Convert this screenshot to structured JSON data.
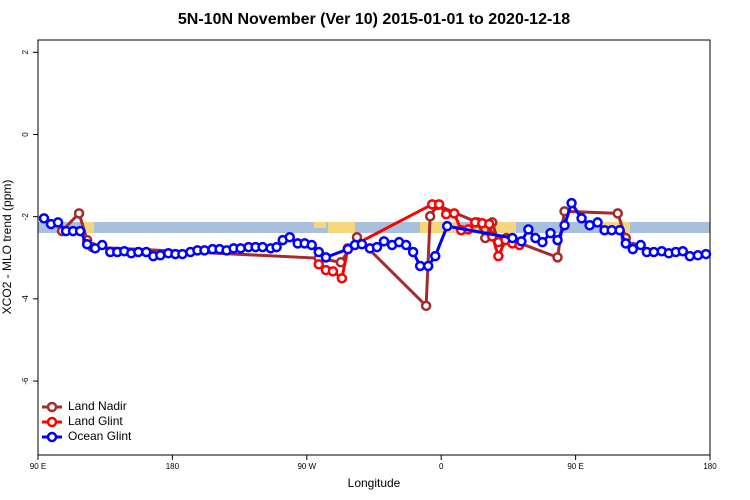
{
  "chart_data": {
    "type": "line",
    "title": "5N-10N November (Ver 10)   2015-01-01 to 2020-12-18",
    "xlabel": "Longitude",
    "ylabel": "XCO2 - MLO trend (ppm)",
    "xlim": [
      90,
      540
    ],
    "xticks": [
      {
        "value": 90,
        "label": "90 E"
      },
      180,
      {
        "value": 270,
        "label": "90 W"
      },
      {
        "value": 360,
        "label": "0"
      },
      {
        "value": 450,
        "label": "90 E"
      },
      {
        "value": 540,
        "label": "180"
      }
    ],
    "ylim": [
      -7.8,
      2.3
    ],
    "yticks": [
      -6,
      -4,
      -2,
      0,
      2
    ],
    "legend": "bottomleft",
    "series": [
      {
        "name": "Land Nadir",
        "color": "#a52a2a",
        "x": [
          106.1,
          117.5,
          122.9,
          126.3,
          278.0,
          292.8,
          303.6,
          349.9,
          352.6,
          357.3,
          384.2,
          389.5,
          394.2,
          398.3,
          403.6,
          437.9,
          442.6,
          478.2,
          483.6,
          488.3
        ],
        "values": [
          -2.35,
          -1.92,
          -2.57,
          -2.74,
          -3.01,
          -3.11,
          -2.5,
          -4.17,
          -1.99,
          -1.72,
          -2.14,
          -2.52,
          -2.14,
          -2.62,
          -2.52,
          -2.99,
          -1.87,
          -1.92,
          -2.52,
          -2.74
        ]
      },
      {
        "name": "Land Glint",
        "color": "#ff0000",
        "x": [
          278.0,
          282.8,
          287.5,
          293.5,
          297.5,
          354.0,
          358.6,
          363.3,
          368.7,
          373.4,
          378.1,
          382.8,
          387.5,
          392.2,
          394.2,
          398.3,
          403.0,
          407.7,
          412.4
        ],
        "values": [
          -3.16,
          -3.3,
          -3.33,
          -3.5,
          -2.77,
          -1.7,
          -1.7,
          -1.94,
          -1.92,
          -2.33,
          -2.31,
          -2.14,
          -2.16,
          -2.18,
          -2.48,
          -2.96,
          -2.57,
          -2.65,
          -2.69
        ]
      },
      {
        "name": "Ocean Glint",
        "color": "#0000ff",
        "x": [
          94.0,
          98.7,
          103.4,
          108.8,
          113.5,
          118.2,
          122.9,
          128.3,
          133.0,
          138.4,
          143.1,
          147.8,
          152.5,
          157.2,
          162.5,
          167.2,
          171.9,
          177.3,
          182.0,
          186.7,
          192.1,
          196.8,
          201.5,
          206.9,
          211.6,
          216.3,
          221.0,
          225.7,
          231.0,
          235.7,
          240.4,
          245.8,
          249.8,
          253.9,
          258.6,
          263.9,
          268.6,
          273.3,
          278.0,
          282.8,
          297.5,
          302.2,
          306.9,
          312.3,
          317.0,
          321.7,
          327.1,
          331.8,
          336.5,
          341.2,
          345.9,
          351.3,
          356.0,
          364.0,
          407.7,
          413.7,
          418.4,
          423.1,
          427.8,
          433.2,
          437.9,
          442.6,
          447.3,
          454.0,
          459.4,
          464.7,
          469.4,
          474.2,
          479.5,
          483.6,
          488.3,
          493.6,
          497.7,
          502.4,
          507.7,
          512.4,
          517.1,
          521.8,
          526.5,
          531.9,
          537.3
        ],
        "values": [
          -2.04,
          -2.18,
          -2.14,
          -2.35,
          -2.35,
          -2.35,
          -2.67,
          -2.77,
          -2.69,
          -2.86,
          -2.86,
          -2.84,
          -2.89,
          -2.86,
          -2.86,
          -2.96,
          -2.94,
          -2.89,
          -2.91,
          -2.91,
          -2.86,
          -2.82,
          -2.82,
          -2.79,
          -2.79,
          -2.82,
          -2.77,
          -2.77,
          -2.74,
          -2.74,
          -2.74,
          -2.77,
          -2.74,
          -2.57,
          -2.5,
          -2.65,
          -2.65,
          -2.69,
          -2.86,
          -2.99,
          -2.79,
          -2.69,
          -2.67,
          -2.77,
          -2.74,
          -2.6,
          -2.69,
          -2.62,
          -2.69,
          -2.86,
          -3.2,
          -3.2,
          -2.96,
          -2.23,
          -2.52,
          -2.6,
          -2.31,
          -2.52,
          -2.62,
          -2.4,
          -2.57,
          -2.21,
          -1.67,
          -2.04,
          -2.21,
          -2.14,
          -2.33,
          -2.33,
          -2.33,
          -2.65,
          -2.79,
          -2.69,
          -2.86,
          -2.86,
          -2.84,
          -2.89,
          -2.86,
          -2.84,
          -2.96,
          -2.94,
          -2.91
        ]
      }
    ]
  }
}
